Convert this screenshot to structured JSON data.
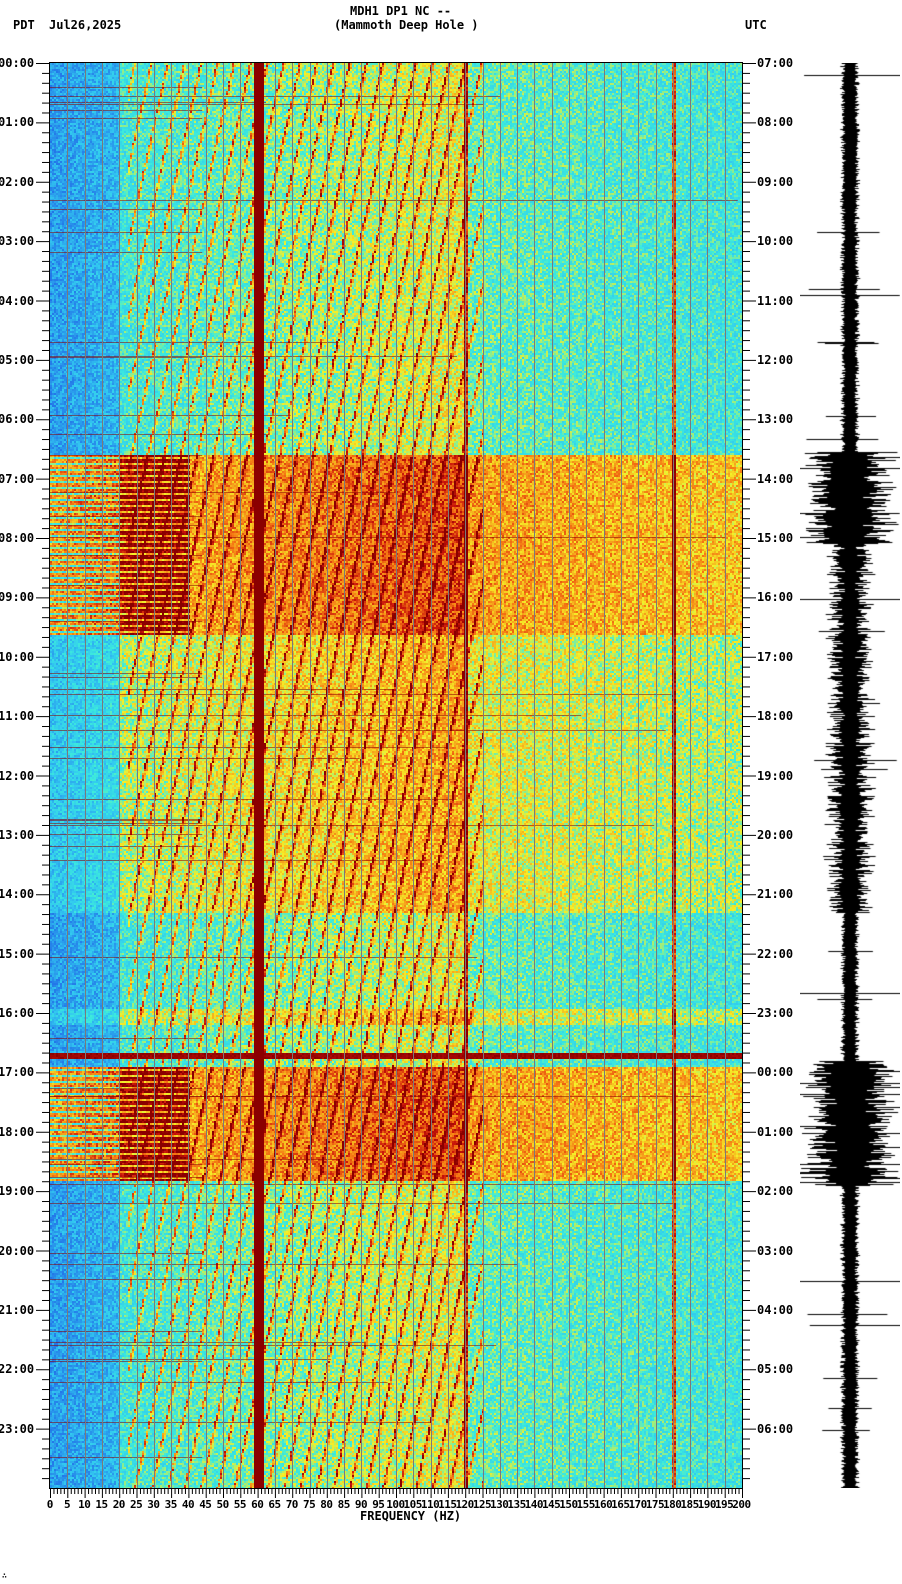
{
  "header": {
    "station_line": "MDH1 DP1 NC --",
    "site_line": "(Mammoth Deep Hole )",
    "left_tz": "PDT",
    "date": "Jul26,2025",
    "right_tz": "UTC"
  },
  "footer": {
    "xlabel": "FREQUENCY (HZ)",
    "corner_mark": "∴"
  },
  "colors": {
    "low": "#1e6fe6",
    "mid_low": "#33e0e8",
    "mid": "#f5f020",
    "high": "#f07010",
    "peak": "#8b0000",
    "grid": "#7a7a7a",
    "frame": "#000000",
    "waveform": "#000000"
  },
  "chart_data": {
    "type": "heatmap",
    "title": "MDH1 DP1 NC -- (Mammoth Deep Hole ) spectrogram",
    "xlabel": "FREQUENCY (HZ)",
    "ylabel_left": "PDT",
    "ylabel_right": "UTC",
    "xlim": [
      0,
      200
    ],
    "x_ticks": [
      0,
      5,
      10,
      15,
      20,
      25,
      30,
      35,
      40,
      45,
      50,
      55,
      60,
      65,
      70,
      75,
      80,
      85,
      90,
      95,
      100,
      105,
      110,
      115,
      120,
      125,
      130,
      135,
      140,
      145,
      150,
      155,
      160,
      165,
      170,
      175,
      180,
      185,
      190,
      195,
      200
    ],
    "y_ticks_left": [
      "00:00",
      "01:00",
      "02:00",
      "03:00",
      "04:00",
      "05:00",
      "06:00",
      "07:00",
      "08:00",
      "09:00",
      "10:00",
      "11:00",
      "12:00",
      "13:00",
      "14:00",
      "15:00",
      "16:00",
      "17:00",
      "18:00",
      "19:00",
      "20:00",
      "21:00",
      "22:00",
      "23:00"
    ],
    "y_ticks_right": [
      "07:00",
      "08:00",
      "09:00",
      "10:00",
      "11:00",
      "12:00",
      "13:00",
      "14:00",
      "15:00",
      "16:00",
      "17:00",
      "18:00",
      "19:00",
      "20:00",
      "21:00",
      "22:00",
      "23:00",
      "00:00",
      "01:00",
      "02:00",
      "03:00",
      "04:00",
      "05:00",
      "06:00"
    ],
    "hours": 24,
    "minor_ticks_per_hour": 6,
    "persistent_lines_hz": [
      60,
      120,
      180
    ],
    "strong_line_hz": 60,
    "grid_line_every_hz": 5,
    "noisy_periods_pdt": [
      {
        "start": 6.6,
        "end": 9.6,
        "level": "high"
      },
      {
        "start": 9.6,
        "end": 14.3,
        "level": "elevated"
      },
      {
        "start": 15.9,
        "end": 16.2,
        "level": "elevated"
      },
      {
        "start": 16.65,
        "end": 16.75,
        "level": "broadband-spike"
      },
      {
        "start": 16.9,
        "end": 18.8,
        "level": "high"
      }
    ],
    "low_freq_quiet_below_hz": 20,
    "colormap": [
      "blue",
      "cyan",
      "yellow",
      "orange",
      "dark-red"
    ],
    "side_panel": "seismogram trace (amplitude vs time), bursts at 06:35-08:10 and 16:50-18:50 PDT"
  }
}
